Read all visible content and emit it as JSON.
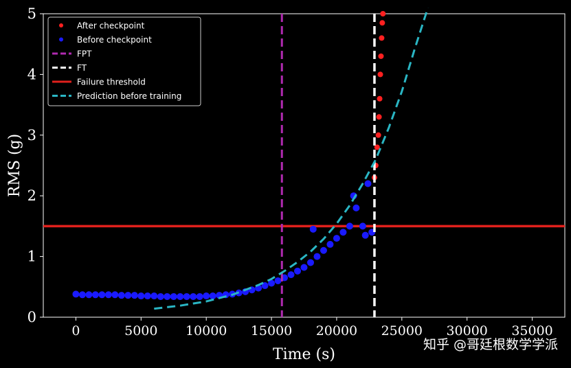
{
  "chart_data": {
    "type": "scatter",
    "xlabel": "Time (s)",
    "ylabel": "RMS (g)",
    "xlim": [
      -2500,
      37500
    ],
    "ylim": [
      0,
      5
    ],
    "xticks": [
      0,
      5000,
      10000,
      15000,
      20000,
      25000,
      30000,
      35000
    ],
    "yticks": [
      0,
      1,
      2,
      3,
      4,
      5
    ],
    "legend_position": "top-left",
    "legend": [
      {
        "label": "After checkpoint",
        "kind": "dot",
        "color": "#ff2020"
      },
      {
        "label": "Before checkpoint",
        "kind": "dot",
        "color": "#1a1aff"
      },
      {
        "label": "FPT",
        "kind": "dash",
        "color": "#b02ab0"
      },
      {
        "label": "FT",
        "kind": "dash",
        "color": "#ffffff"
      },
      {
        "label": "Failure threshold",
        "kind": "line",
        "color": "#e0201c"
      },
      {
        "label": "Prediction before training",
        "kind": "dash",
        "color": "#2ab6c4"
      }
    ],
    "fpt_x": 15800,
    "ft_x": 22900,
    "failure_threshold": 1.5,
    "before_checkpoint": [
      [
        0,
        0.38
      ],
      [
        500,
        0.37
      ],
      [
        1000,
        0.37
      ],
      [
        1500,
        0.37
      ],
      [
        2000,
        0.37
      ],
      [
        2500,
        0.37
      ],
      [
        3000,
        0.37
      ],
      [
        3500,
        0.36
      ],
      [
        4000,
        0.36
      ],
      [
        4500,
        0.36
      ],
      [
        5000,
        0.35
      ],
      [
        5500,
        0.35
      ],
      [
        6000,
        0.35
      ],
      [
        6500,
        0.34
      ],
      [
        7000,
        0.34
      ],
      [
        7500,
        0.34
      ],
      [
        8000,
        0.34
      ],
      [
        8500,
        0.34
      ],
      [
        9000,
        0.34
      ],
      [
        9500,
        0.34
      ],
      [
        10000,
        0.35
      ],
      [
        10500,
        0.35
      ],
      [
        11000,
        0.36
      ],
      [
        11500,
        0.37
      ],
      [
        12000,
        0.38
      ],
      [
        12500,
        0.4
      ],
      [
        13000,
        0.42
      ],
      [
        13500,
        0.45
      ],
      [
        14000,
        0.48
      ],
      [
        14500,
        0.52
      ],
      [
        15000,
        0.56
      ],
      [
        15500,
        0.6
      ],
      [
        16000,
        0.65
      ],
      [
        16500,
        0.7
      ],
      [
        17000,
        0.76
      ],
      [
        17500,
        0.82
      ],
      [
        18000,
        0.9
      ],
      [
        18200,
        1.45
      ],
      [
        18500,
        1.0
      ],
      [
        19000,
        1.1
      ],
      [
        19500,
        1.2
      ],
      [
        20000,
        1.3
      ],
      [
        20500,
        1.4
      ],
      [
        21000,
        1.5
      ],
      [
        21300,
        2.0
      ],
      [
        21500,
        1.8
      ],
      [
        22000,
        1.5
      ],
      [
        22200,
        1.35
      ],
      [
        22400,
        2.2
      ],
      [
        22700,
        1.4
      ]
    ],
    "after_checkpoint": [
      [
        22900,
        2.3
      ],
      [
        23000,
        2.5
      ],
      [
        23100,
        2.8
      ],
      [
        23200,
        3.0
      ],
      [
        23250,
        3.3
      ],
      [
        23300,
        3.6
      ],
      [
        23350,
        4.0
      ],
      [
        23400,
        4.3
      ],
      [
        23450,
        4.6
      ],
      [
        23500,
        4.85
      ],
      [
        23550,
        5.0
      ]
    ],
    "prediction_before_training": [
      [
        6000,
        0.14
      ],
      [
        8000,
        0.19
      ],
      [
        10000,
        0.26
      ],
      [
        12000,
        0.37
      ],
      [
        14000,
        0.53
      ],
      [
        15000,
        0.63
      ],
      [
        16000,
        0.76
      ],
      [
        17000,
        0.91
      ],
      [
        18000,
        1.08
      ],
      [
        19000,
        1.29
      ],
      [
        20000,
        1.54
      ],
      [
        21000,
        1.84
      ],
      [
        22000,
        2.2
      ],
      [
        23000,
        2.6
      ],
      [
        24000,
        3.12
      ],
      [
        25000,
        3.72
      ],
      [
        26000,
        4.43
      ],
      [
        27000,
        5.1
      ]
    ]
  },
  "watermark": "知乎 @哥廷根数学学派"
}
